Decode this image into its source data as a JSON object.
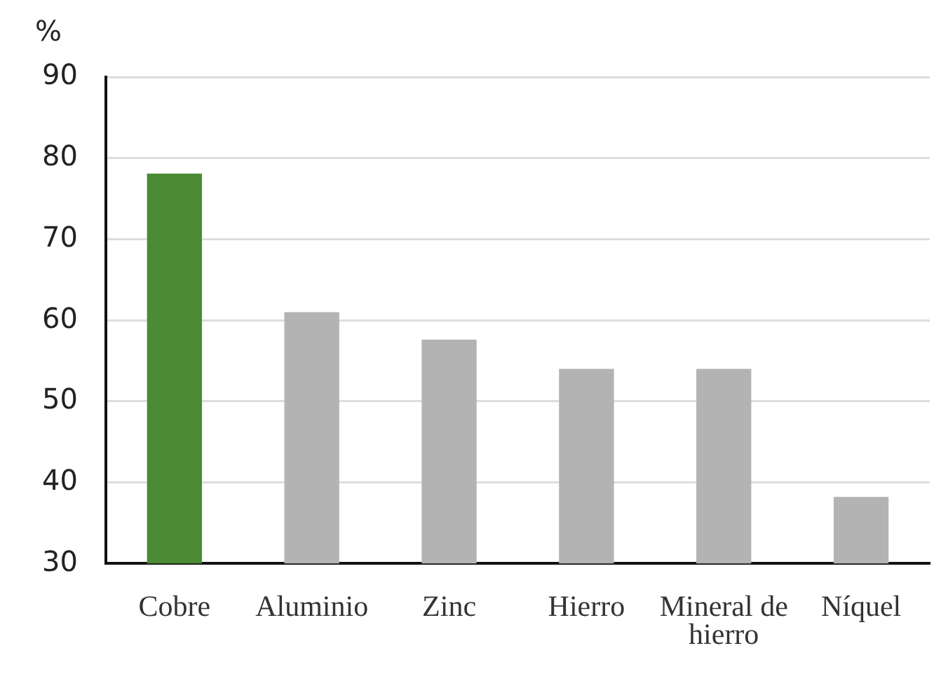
{
  "chart_data": {
    "type": "bar",
    "ylabel": "%",
    "categories": [
      "Cobre",
      "Aluminio",
      "Zinc",
      "Hierro",
      "Mineral de hierro",
      "Níquel"
    ],
    "values": [
      78.1,
      61.0,
      57.6,
      54.0,
      54.0,
      38.2
    ],
    "colors": [
      "#4c8a34",
      "#b3b3b3",
      "#b3b3b3",
      "#b3b3b3",
      "#b3b3b3",
      "#b3b3b3"
    ],
    "ylim": [
      30,
      90
    ],
    "yticks": [
      30,
      40,
      50,
      60,
      70,
      80,
      90
    ],
    "grid": "y"
  }
}
